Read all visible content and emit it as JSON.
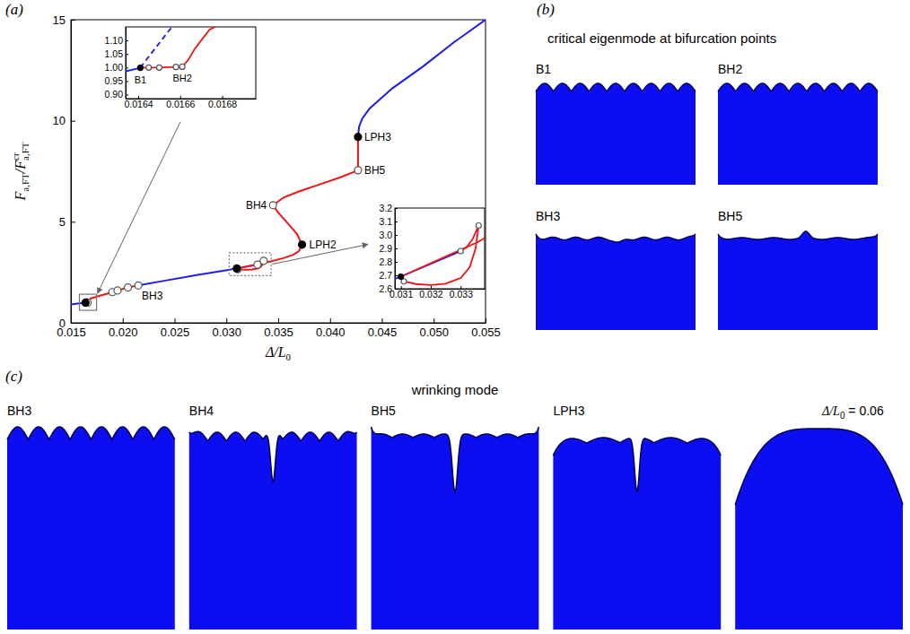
{
  "chart_data": {
    "type": "line",
    "panel_label": "(a)",
    "xlabel": [
      "Δ/L",
      "0"
    ],
    "ylabel": [
      "F",
      "a,FT",
      "/F",
      "cr",
      "a,FT"
    ],
    "xlim": [
      0.015,
      0.055
    ],
    "xticks": [
      0.015,
      {
        "value": 0.02,
        "label": "0.020"
      },
      0.025,
      {
        "value": 0.03,
        "label": "0.030"
      },
      0.035,
      {
        "value": 0.04,
        "label": "0.040"
      },
      0.045,
      {
        "value": 0.05,
        "label": "0.050"
      },
      0.055
    ],
    "ylim": [
      0,
      15
    ],
    "yticks": [
      0,
      5,
      10,
      15
    ],
    "series": [
      {
        "type": "line",
        "color": "#1c1cf0",
        "line_style": "solid",
        "x": [
          0.015,
          0.0158,
          0.01634,
          0.01641
        ],
        "values": [
          0.91,
          0.96,
          0.986,
          0.999
        ]
      },
      {
        "type": "line",
        "color": "#f01414",
        "line_style": "solid",
        "x": [
          0.01641,
          0.01645,
          0.0165,
          0.01658,
          0.01661,
          0.01664,
          0.01667,
          0.0167,
          0.01674,
          0.0169,
          0.0175,
          0.0182,
          0.019,
          0.0195,
          0.0205,
          0.0215
        ],
        "values": [
          0.999,
          1.0,
          1.0,
          1.002,
          1.003,
          1.03,
          1.07,
          1.1,
          1.14,
          1.2,
          1.3,
          1.4,
          1.52,
          1.6,
          1.75,
          1.85
        ]
      },
      {
        "type": "line",
        "color": "#1c1cf0",
        "line_style": "dashed",
        "x": [
          0.01641,
          0.01643,
          0.01646,
          0.0165,
          0.01655,
          0.0166
        ],
        "values": [
          0.999,
          1.02,
          1.05,
          1.09,
          1.14,
          1.18
        ]
      },
      {
        "type": "line",
        "color": "#1c1cf0",
        "line_style": "solid",
        "x": [
          0.0215,
          0.024,
          0.027,
          0.031,
          0.033
        ],
        "values": [
          1.85,
          2.08,
          2.35,
          2.69,
          2.88
        ]
      },
      {
        "type": "line",
        "color": "#f01414",
        "line_style": "solid",
        "x": [
          0.031,
          0.0336,
          0.0355,
          0.0365,
          0.037,
          0.0373,
          0.0368,
          0.0358,
          0.035,
          0.0345,
          0.0355,
          0.037,
          0.039,
          0.041,
          0.0427,
          0.0427,
          0.0427
        ],
        "values": [
          2.69,
          2.95,
          3.2,
          3.38,
          3.55,
          3.87,
          4.4,
          5.0,
          5.45,
          5.82,
          6.2,
          6.5,
          6.85,
          7.2,
          7.55,
          8.4,
          9.2
        ]
      },
      {
        "type": "line",
        "color": "#f01414",
        "line_style": "solid",
        "x": [
          0.031,
          0.0311,
          0.0315,
          0.032,
          0.0325,
          0.033,
          0.0333,
          0.0335,
          0.0336,
          0.0334,
          0.0332,
          0.033
        ],
        "values": [
          2.69,
          2.655,
          2.635,
          2.628,
          2.638,
          2.68,
          2.76,
          2.9,
          3.07,
          2.97,
          2.91,
          2.88
        ]
      },
      {
        "type": "line",
        "color": "#1c1cf0",
        "line_style": "solid",
        "x": [
          0.0427,
          0.0428,
          0.0431,
          0.0438,
          0.046,
          0.049,
          0.052,
          0.055
        ],
        "values": [
          9.2,
          9.7,
          10.1,
          10.6,
          11.6,
          12.7,
          13.9,
          15.0
        ]
      },
      {
        "type": "scatter",
        "color": "#555555",
        "marker": "open-circle",
        "x": [
          0.01645,
          0.0165,
          0.01658,
          0.01661,
          0.019,
          0.0195,
          0.0205,
          0.0215,
          0.0311,
          0.033,
          0.0336,
          0.0345,
          0.0427
        ],
        "values": [
          1.0,
          1.0,
          1.002,
          1.003,
          1.52,
          1.6,
          1.75,
          1.85,
          2.655,
          2.88,
          3.07,
          5.82,
          7.55
        ]
      },
      {
        "type": "scatter",
        "color": "#000000",
        "marker": "filled-circle",
        "x": [
          0.01641,
          0.031,
          0.0373,
          0.0427
        ],
        "values": [
          0.999,
          2.69,
          3.87,
          9.2
        ]
      }
    ],
    "annotations": [
      {
        "text": "BH3",
        "x": 0.0215,
        "y": 1.85
      },
      {
        "text": "LPH2",
        "x": 0.0373,
        "y": 3.87
      },
      {
        "text": "BH4",
        "x": 0.0345,
        "y": 5.82
      },
      {
        "text": "BH5",
        "x": 0.0427,
        "y": 7.55
      },
      {
        "text": "LPH3",
        "x": 0.0427,
        "y": 9.2
      }
    ],
    "insets": [
      {
        "xlim": [
          0.01634,
          0.01696
        ],
        "xticks": [
          0.0164,
          0.0166,
          0.0168
        ],
        "ylim": [
          0.885,
          1.15
        ],
        "yticks": [
          {
            "value": 0.9,
            "label": "0.90"
          },
          0.95,
          {
            "value": 1.0,
            "label": "1.00"
          },
          1.05,
          {
            "value": 1.1,
            "label": "1.10"
          }
        ],
        "annotations": [
          {
            "text": "B1",
            "x": 0.01641,
            "y": 0.999
          },
          {
            "text": "BH2",
            "x": 0.01661,
            "y": 1.003
          }
        ]
      },
      {
        "xlim": [
          0.0308,
          0.0338
        ],
        "xticks": [
          0.031,
          0.032,
          0.033
        ],
        "ylim": [
          2.6,
          3.2
        ],
        "yticks": [
          2.6,
          2.7,
          2.8,
          2.9,
          {
            "value": 3.0,
            "label": "3.0"
          },
          3.1,
          3.2
        ],
        "annotations": []
      }
    ]
  },
  "eigenmodes": {
    "panel_label": "(b)",
    "title": "critical eigenmode at bifurcation points",
    "labels": [
      "B1",
      "BH2",
      "BH3",
      "BH5"
    ],
    "color": "#0d0df2"
  },
  "wrinkling": {
    "panel_label": "(c)",
    "title": "wrinking mode",
    "labels": [
      "BH3",
      "BH4",
      "BH5",
      "LPH3"
    ],
    "last_label": [
      "Δ/L",
      "0",
      " = 0.06"
    ],
    "color": "#0d0df2"
  }
}
